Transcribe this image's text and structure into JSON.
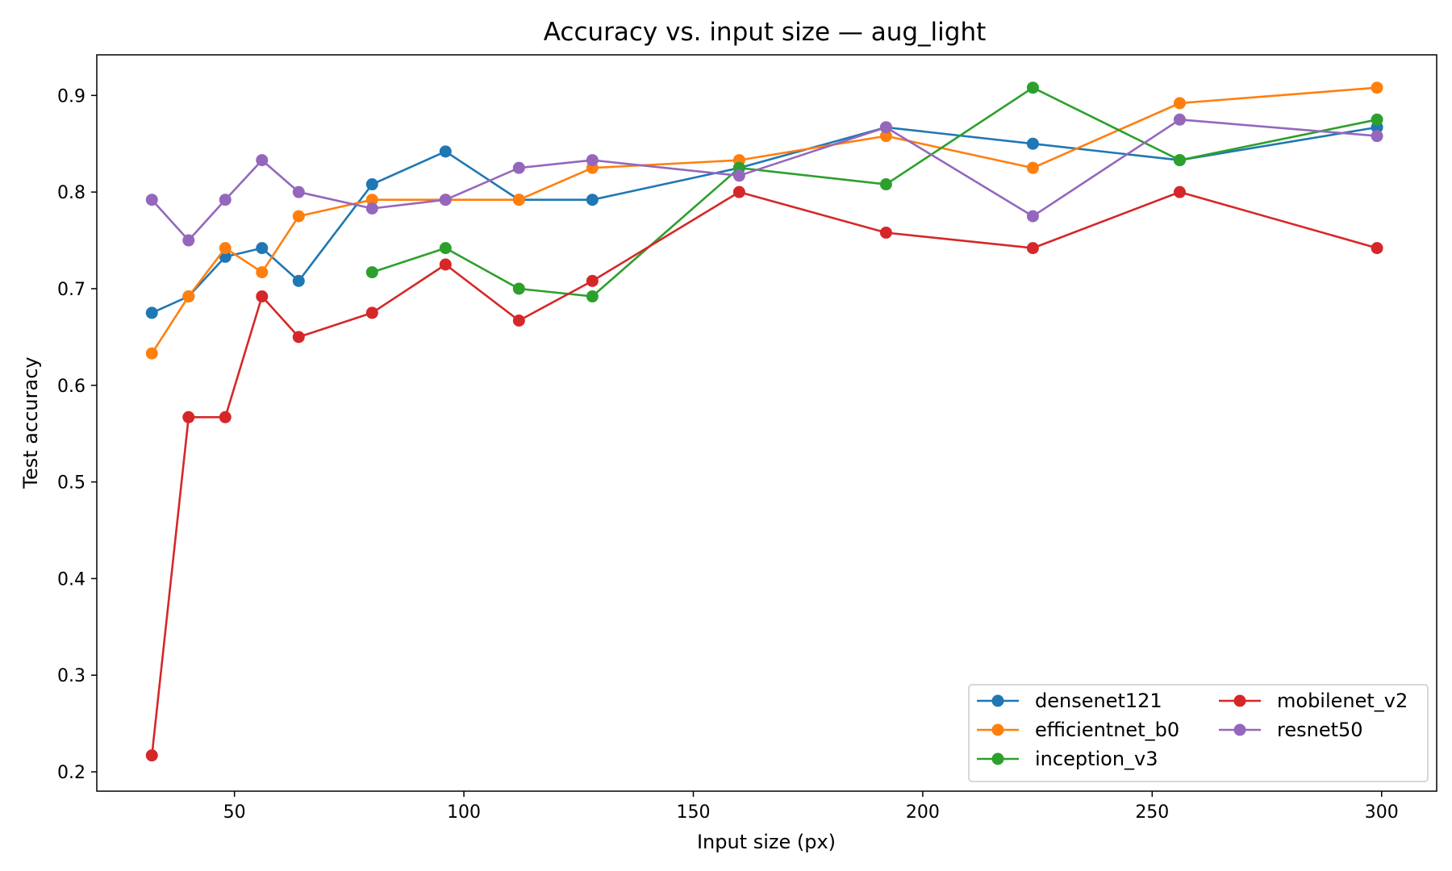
{
  "chart_data": {
    "type": "line",
    "title": "Accuracy vs. input size — aug_light",
    "xlabel": "Input size (px)",
    "ylabel": "Test accuracy",
    "xlim": [
      20,
      312
    ],
    "ylim": [
      0.18,
      0.942
    ],
    "xticks": [
      50,
      100,
      150,
      200,
      250,
      300
    ],
    "xtick_labels": [
      "50",
      "100",
      "150",
      "200",
      "250",
      "300"
    ],
    "yticks": [
      0.2,
      0.3,
      0.4,
      0.5,
      0.6,
      0.7,
      0.8,
      0.9
    ],
    "ytick_labels": [
      "0.2",
      "0.3",
      "0.4",
      "0.5",
      "0.6",
      "0.7",
      "0.8",
      "0.9"
    ],
    "grid": false,
    "legend_position": "bottom-right",
    "legend_columns": 2,
    "series": [
      {
        "name": "densenet121",
        "color": "#1f77b4",
        "points": [
          [
            32,
            0.675
          ],
          [
            40,
            0.692
          ],
          [
            48,
            0.733
          ],
          [
            56,
            0.742
          ],
          [
            64,
            0.708
          ],
          [
            80,
            0.808
          ],
          [
            96,
            0.842
          ],
          [
            112,
            0.792
          ],
          [
            128,
            0.792
          ],
          [
            160,
            0.825
          ],
          [
            192,
            0.867
          ],
          [
            224,
            0.85
          ],
          [
            256,
            0.833
          ],
          [
            299,
            0.867
          ]
        ]
      },
      {
        "name": "efficientnet_b0",
        "color": "#ff7f0e",
        "points": [
          [
            32,
            0.633
          ],
          [
            40,
            0.692
          ],
          [
            48,
            0.742
          ],
          [
            56,
            0.717
          ],
          [
            64,
            0.775
          ],
          [
            80,
            0.792
          ],
          [
            96,
            0.792
          ],
          [
            112,
            0.792
          ],
          [
            128,
            0.825
          ],
          [
            160,
            0.833
          ],
          [
            192,
            0.858
          ],
          [
            224,
            0.825
          ],
          [
            256,
            0.892
          ],
          [
            299,
            0.908
          ]
        ]
      },
      {
        "name": "inception_v3",
        "color": "#2ca02c",
        "points": [
          [
            80,
            0.717
          ],
          [
            96,
            0.742
          ],
          [
            112,
            0.7
          ],
          [
            128,
            0.692
          ],
          [
            160,
            0.825
          ],
          [
            192,
            0.808
          ],
          [
            224,
            0.908
          ],
          [
            256,
            0.833
          ],
          [
            299,
            0.875
          ]
        ]
      },
      {
        "name": "mobilenet_v2",
        "color": "#d62728",
        "points": [
          [
            32,
            0.217
          ],
          [
            40,
            0.567
          ],
          [
            48,
            0.567
          ],
          [
            56,
            0.692
          ],
          [
            64,
            0.65
          ],
          [
            80,
            0.675
          ],
          [
            96,
            0.725
          ],
          [
            112,
            0.667
          ],
          [
            128,
            0.708
          ],
          [
            160,
            0.8
          ],
          [
            192,
            0.758
          ],
          [
            224,
            0.742
          ],
          [
            256,
            0.8
          ],
          [
            299,
            0.742
          ]
        ]
      },
      {
        "name": "resnet50",
        "color": "#9467bd",
        "points": [
          [
            32,
            0.792
          ],
          [
            40,
            0.75
          ],
          [
            48,
            0.792
          ],
          [
            56,
            0.833
          ],
          [
            64,
            0.8
          ],
          [
            80,
            0.783
          ],
          [
            96,
            0.792
          ],
          [
            112,
            0.825
          ],
          [
            128,
            0.833
          ],
          [
            160,
            0.817
          ],
          [
            192,
            0.867
          ],
          [
            224,
            0.775
          ],
          [
            256,
            0.875
          ],
          [
            299,
            0.858
          ]
        ]
      }
    ]
  }
}
